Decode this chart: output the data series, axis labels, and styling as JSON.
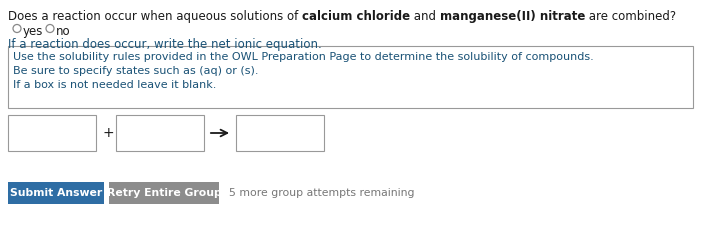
{
  "title_parts": [
    {
      "text": "Does a reaction occur when aqueous solutions of ",
      "bold": false
    },
    {
      "text": "calcium chloride",
      "bold": true
    },
    {
      "text": " and ",
      "bold": false
    },
    {
      "text": "manganese(II) nitrate",
      "bold": true
    },
    {
      "text": " are combined?",
      "bold": false
    }
  ],
  "yes_label": "yes",
  "no_label": "no",
  "reaction_label": "If a reaction does occur, write the net ionic equation.",
  "box_line1": "Use the solubility rules provided in the OWL Preparation Page to determine the solubility of compounds.",
  "box_line2": "Be sure to specify states such as (aq) or (s).",
  "box_line3": "If a box is not needed leave it blank.",
  "submit_text": "Submit Answer",
  "retry_text": "Retry Entire Group",
  "attempts_text": "5 more group attempts remaining",
  "bg_color": "#ffffff",
  "text_color": "#1a1a1a",
  "reaction_text_color": "#1a5276",
  "box_text_color": "#1a5276",
  "submit_btn_color": "#2e6da4",
  "retry_btn_color": "#8c8c8c",
  "btn_text_color": "#ffffff",
  "attempts_text_color": "#777777",
  "box_border_color": "#999999",
  "input_border_color": "#999999"
}
